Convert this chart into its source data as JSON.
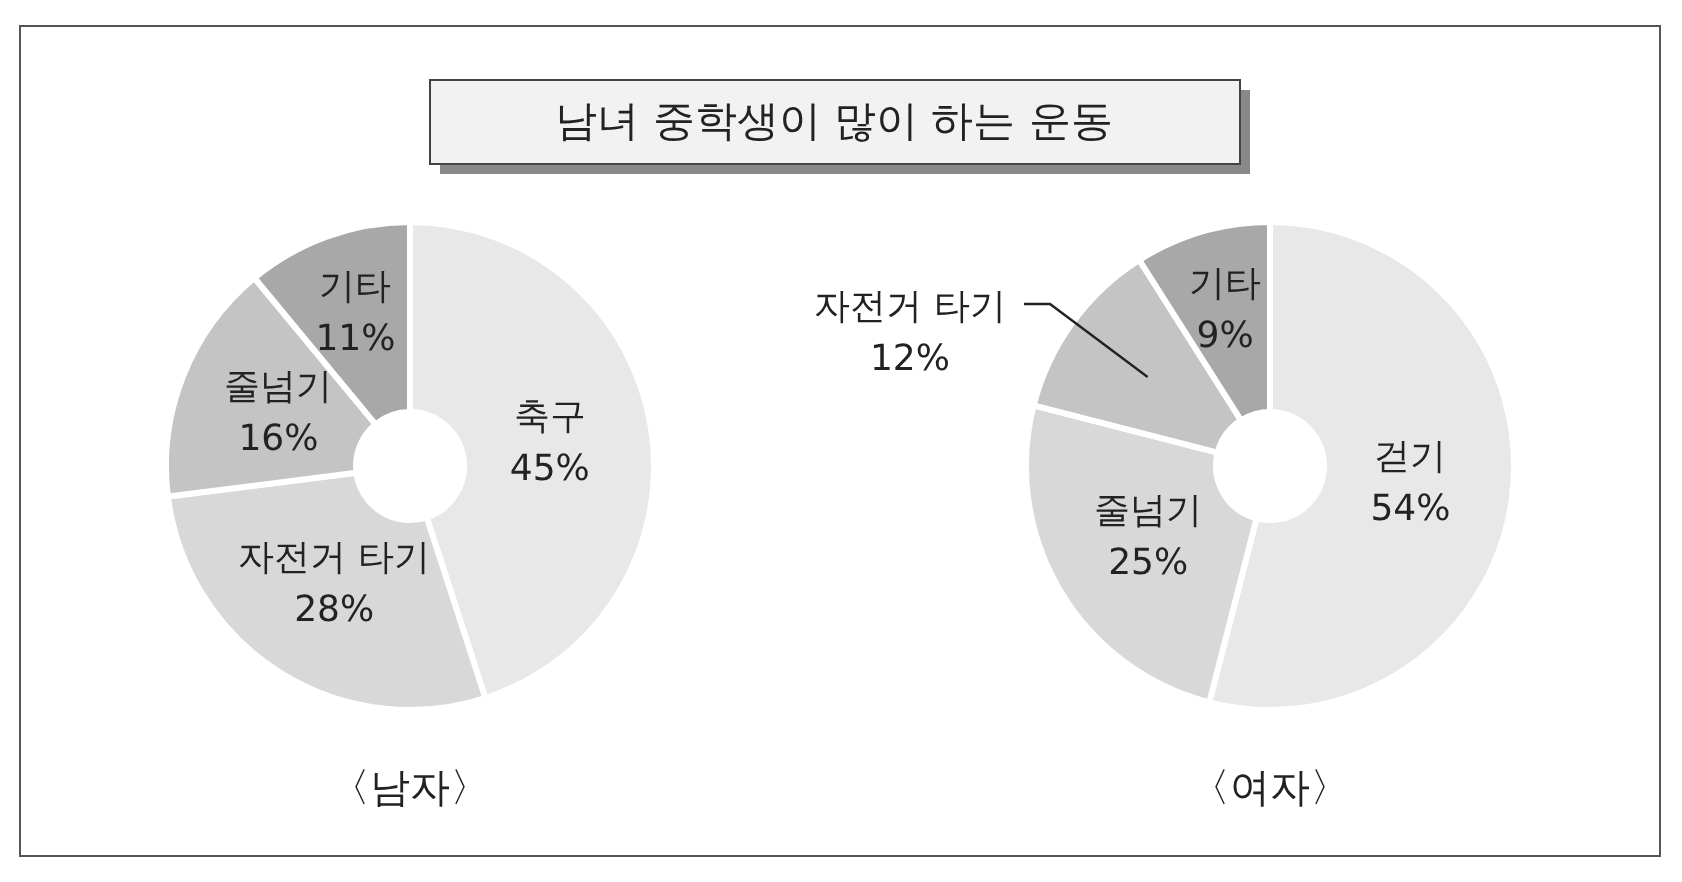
{
  "chart_data": [
    {
      "type": "donut",
      "title": "남녀 중학생이 많이 하는 운동",
      "xlabel": "〈남자〉",
      "categories": [
        "축구",
        "자전거 타기",
        "줄넘기",
        "기타"
      ],
      "values": [
        45,
        28,
        16,
        11
      ],
      "value_labels": [
        "45%",
        "28%",
        "16%",
        "11%"
      ],
      "colors": [
        "#e8e8e8",
        "#d8d8d8",
        "#c4c4c4",
        "#a8a8a8"
      ]
    },
    {
      "type": "donut",
      "xlabel": "〈여자〉",
      "categories": [
        "걷기",
        "줄넘기",
        "자전거 타기",
        "기타"
      ],
      "values": [
        54,
        25,
        12,
        9
      ],
      "value_labels": [
        "54%",
        "25%",
        "12%",
        "9%"
      ],
      "colors": [
        "#e8e8e8",
        "#d8d8d8",
        "#c4c4c4",
        "#a8a8a8"
      ]
    }
  ]
}
